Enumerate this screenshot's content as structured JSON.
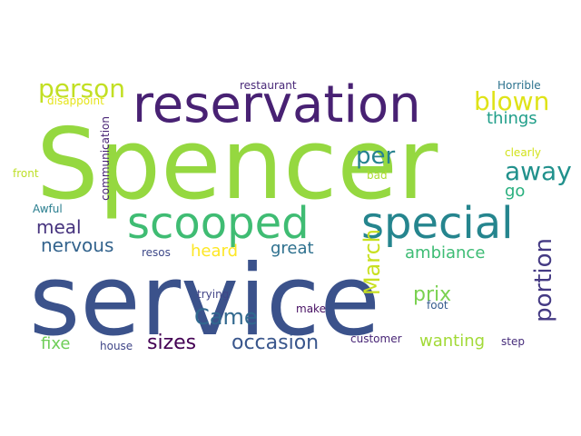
{
  "word_cloud": {
    "background_color": "#ffffff",
    "words": [
      {
        "text": "service",
        "color": "#3b528b"
      },
      {
        "text": "Spencer",
        "color": "#95d840"
      },
      {
        "text": "reservation",
        "color": "#482173"
      },
      {
        "text": "scooped",
        "color": "#3fbc73"
      },
      {
        "text": "special",
        "color": "#25858e"
      },
      {
        "text": "person",
        "color": "#c2df23"
      },
      {
        "text": "blown",
        "color": "#dfe318"
      },
      {
        "text": "things",
        "color": "#1f9e89"
      },
      {
        "text": "away",
        "color": "#21918c"
      },
      {
        "text": "per",
        "color": "#26828e"
      },
      {
        "text": "go",
        "color": "#2ab07f"
      },
      {
        "text": "meal",
        "color": "#46337e"
      },
      {
        "text": "nervous",
        "color": "#33638d"
      },
      {
        "text": "March",
        "color": "#c8e020"
      },
      {
        "text": "heard",
        "color": "#fde725"
      },
      {
        "text": "great",
        "color": "#2d708e"
      },
      {
        "text": "ambiance",
        "color": "#3dbc74"
      },
      {
        "text": "portion",
        "color": "#443a83"
      },
      {
        "text": "prix",
        "color": "#7ad151"
      },
      {
        "text": "Came",
        "color": "#31688e"
      },
      {
        "text": "sizes",
        "color": "#440154"
      },
      {
        "text": "occasion",
        "color": "#39568c"
      },
      {
        "text": "fixe",
        "color": "#6ece58"
      },
      {
        "text": "wanting",
        "color": "#a2da37"
      },
      {
        "text": "restaurant",
        "color": "#482878"
      },
      {
        "text": "disappoint",
        "color": "#e5e419"
      },
      {
        "text": "Horrible",
        "color": "#2c728e"
      },
      {
        "text": "communication",
        "color": "#482475"
      },
      {
        "text": "clearly",
        "color": "#d2e21b"
      },
      {
        "text": "front",
        "color": "#bddf26"
      },
      {
        "text": "bad",
        "color": "#addc30"
      },
      {
        "text": "Awful",
        "color": "#287d8e"
      },
      {
        "text": "resos",
        "color": "#3e4989"
      },
      {
        "text": "trying",
        "color": "#414487"
      },
      {
        "text": "make",
        "color": "#471063"
      },
      {
        "text": "foot",
        "color": "#365c8d"
      },
      {
        "text": "customer",
        "color": "#482576"
      },
      {
        "text": "house",
        "color": "#404688"
      },
      {
        "text": "step",
        "color": "#472d7b"
      }
    ]
  }
}
